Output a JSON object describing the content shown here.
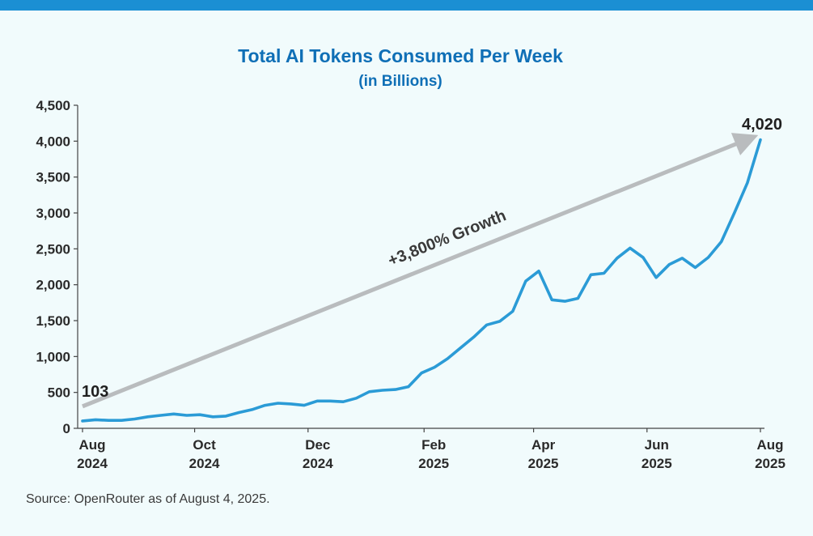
{
  "chart_data": {
    "type": "line",
    "title": "Total AI Tokens Consumed Per Week",
    "subtitle": "(in Billions)",
    "ylim": [
      0,
      4500
    ],
    "yticks": [
      0,
      500,
      1000,
      1500,
      2000,
      2500,
      3000,
      3500,
      4000,
      4500
    ],
    "ytick_labels": [
      "0",
      "500",
      "1,000",
      "1,500",
      "2,000",
      "2,500",
      "3,000",
      "3,500",
      "4,000",
      "4,500"
    ],
    "xlim": [
      0,
      52
    ],
    "xticks": [
      {
        "x": 0,
        "month": "Aug",
        "year": "2024"
      },
      {
        "x": 8.6,
        "month": "Oct",
        "year": "2024"
      },
      {
        "x": 17.3,
        "month": "Dec",
        "year": "2024"
      },
      {
        "x": 26.2,
        "month": "Feb",
        "year": "2025"
      },
      {
        "x": 34.6,
        "month": "Apr",
        "year": "2025"
      },
      {
        "x": 43.3,
        "month": "Jun",
        "year": "2025"
      },
      {
        "x": 52,
        "month": "Aug",
        "year": "2025"
      }
    ],
    "series": [
      {
        "name": "Weekly tokens",
        "color": "#2b9bd6",
        "x": [
          0,
          1,
          2,
          3,
          4,
          5,
          6,
          7,
          8,
          9,
          10,
          11,
          12,
          13,
          14,
          15,
          16,
          17,
          18,
          19,
          20,
          21,
          22,
          23,
          24,
          25,
          26,
          27,
          28,
          29,
          30,
          31,
          32,
          33,
          34,
          35,
          36,
          37,
          38,
          39,
          40,
          41,
          42,
          43,
          44,
          45,
          46,
          47,
          48,
          49,
          50,
          51,
          52
        ],
        "values": [
          103,
          120,
          110,
          110,
          130,
          160,
          180,
          200,
          180,
          190,
          160,
          170,
          220,
          260,
          320,
          350,
          340,
          320,
          380,
          380,
          370,
          420,
          510,
          530,
          540,
          580,
          770,
          850,
          970,
          1120,
          1270,
          1440,
          1490,
          1630,
          2050,
          2190,
          1790,
          1770,
          1810,
          2140,
          2160,
          2370,
          2510,
          2380,
          2100,
          2280,
          2370,
          2240,
          2380,
          2600,
          3000,
          3420,
          4020
        ]
      }
    ],
    "annotations": {
      "start_label": "103",
      "end_label": "4,020",
      "arrow_label": "+3,800% Growth",
      "arrow_color": "#b9bcbe"
    },
    "source": "Source: OpenRouter as of August 4, 2025."
  }
}
